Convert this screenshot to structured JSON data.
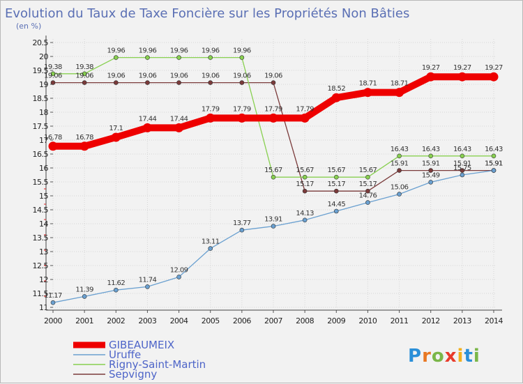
{
  "chart_data": {
    "type": "line",
    "title": "Evolution du Taux de Taxe Foncière sur les Propriétés Non Bâties",
    "subtitle": "(en %)",
    "xlabel": "",
    "ylabel": "",
    "ylim": [
      11,
      20.5
    ],
    "yticks": [
      "11",
      "11.5",
      "12",
      "12.5",
      "13",
      "13.5",
      "14",
      "14.5",
      "15",
      "15.5",
      "16",
      "16.5",
      "17",
      "17.5",
      "18",
      "18.5",
      "19",
      "19.5",
      "20",
      "20.5"
    ],
    "x": [
      "2000",
      "2001",
      "2002",
      "2003",
      "2004",
      "2005",
      "2006",
      "2007",
      "2008",
      "2009",
      "2010",
      "2011",
      "2012",
      "2013",
      "2014"
    ],
    "grid": true,
    "legend_position": "bottom-left",
    "series": [
      {
        "name": "GIBEAUMEIX",
        "color": "#ee0000",
        "values": [
          16.78,
          16.78,
          17.1,
          17.44,
          17.44,
          17.79,
          17.79,
          17.79,
          17.79,
          18.52,
          18.71,
          18.71,
          19.27,
          19.27,
          19.27
        ],
        "labels": [
          "16.78",
          "16.78",
          "17.1",
          "17.44",
          "17.44",
          "17.79",
          "17.79",
          "17.79",
          "17.79",
          "18.52",
          "18.71",
          "18.71",
          "19.27",
          "19.27",
          "19.27"
        ]
      },
      {
        "name": "Uruffe",
        "color": "#6aa0d0",
        "values": [
          11.17,
          11.39,
          11.62,
          11.74,
          12.09,
          13.11,
          13.77,
          13.91,
          14.13,
          14.45,
          14.76,
          15.06,
          15.49,
          15.75,
          15.91
        ],
        "labels": [
          "11.17",
          "11.39",
          "11.62",
          "11.74",
          "12.09",
          "13.11",
          "13.77",
          "13.91",
          "14.13",
          "14.45",
          "14.76",
          "15.06",
          "15.49",
          "15.75",
          "15.91"
        ]
      },
      {
        "name": "Rigny-Saint-Martin",
        "color": "#88d050",
        "values": [
          19.38,
          19.38,
          19.96,
          19.96,
          19.96,
          19.96,
          19.96,
          15.67,
          15.67,
          15.67,
          15.67,
          16.43,
          16.43,
          16.43,
          16.43
        ],
        "labels": [
          "19.38",
          "19.38",
          "19.96",
          "19.96",
          "19.96",
          "19.96",
          "19.96",
          "15.67",
          "15.67",
          "15.67",
          "15.67",
          "16.43",
          "16.43",
          "16.43",
          "16.43"
        ]
      },
      {
        "name": "Sepvigny",
        "color": "#7a3a3a",
        "values": [
          19.06,
          19.06,
          19.06,
          19.06,
          19.06,
          19.06,
          19.06,
          19.06,
          15.17,
          15.17,
          15.17,
          15.91,
          15.91,
          15.91,
          15.91
        ],
        "labels": [
          "19.06",
          "19.06",
          "19.06",
          "19.06",
          "19.06",
          "19.06",
          "19.06",
          "19.06",
          "15.17",
          "15.17",
          "15.17",
          "15.91",
          "15.91",
          "15.91",
          "15.91"
        ]
      }
    ]
  },
  "brand": {
    "text": "Proxiti",
    "letters": [
      "P",
      "r",
      "o",
      "x",
      "i",
      "t",
      "i"
    ],
    "colors": [
      "#2a8fd8",
      "#e87722",
      "#7ab648",
      "#e83a2a",
      "#f2b01e",
      "#2a8fd8",
      "#7ab648"
    ]
  }
}
